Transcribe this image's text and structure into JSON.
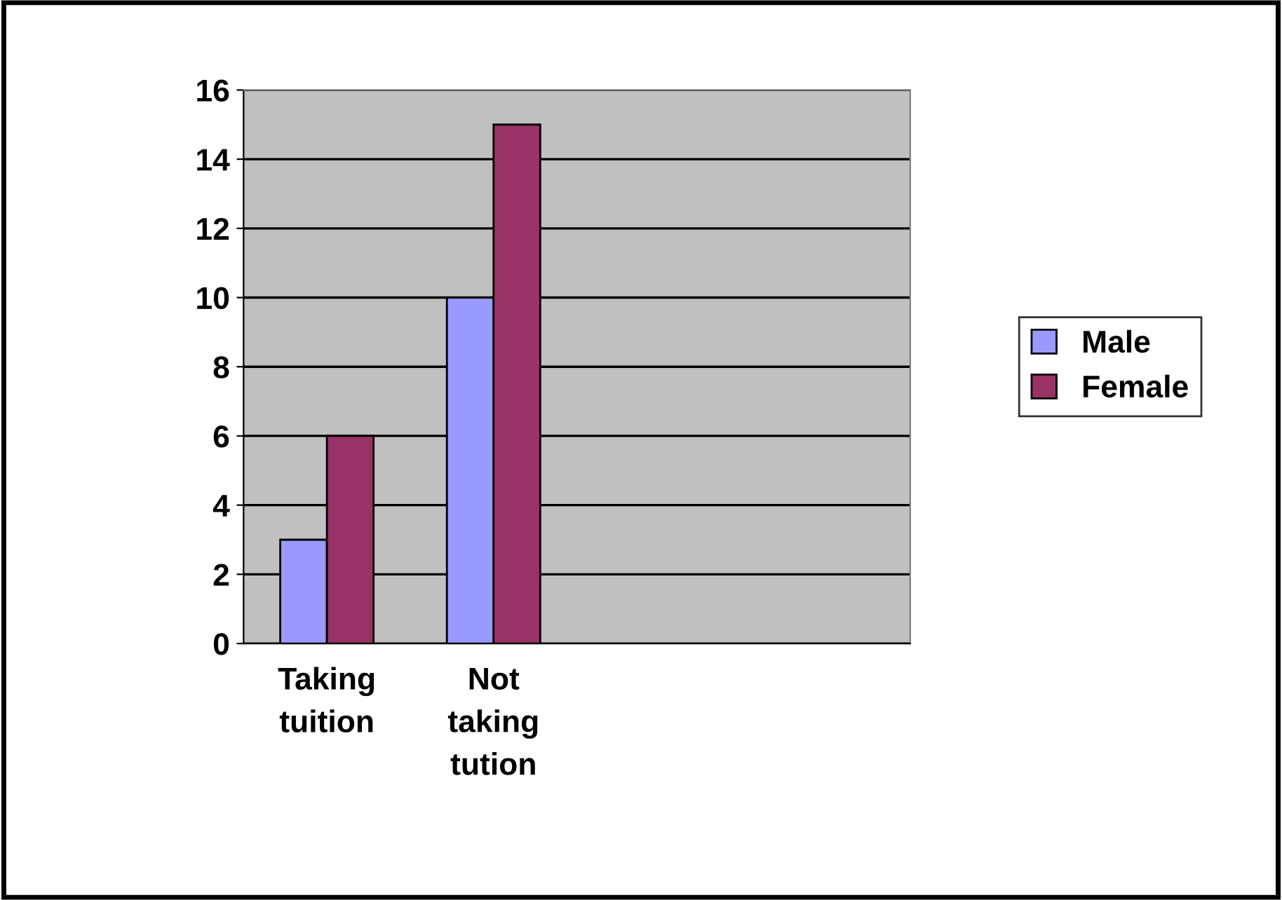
{
  "chart_data": {
    "type": "bar",
    "categories": [
      "Taking tuition",
      "Not taking tution",
      null,
      null
    ],
    "series": [
      {
        "name": "Male",
        "color": "#9999ff",
        "values": [
          3,
          10,
          null,
          null
        ]
      },
      {
        "name": "Female",
        "color": "#993366",
        "values": [
          6,
          15,
          null,
          null
        ]
      }
    ],
    "ylim": [
      0,
      16
    ],
    "yticks": [
      0,
      2,
      4,
      6,
      8,
      10,
      12,
      14,
      16
    ],
    "grid": "y",
    "legend": "right"
  }
}
